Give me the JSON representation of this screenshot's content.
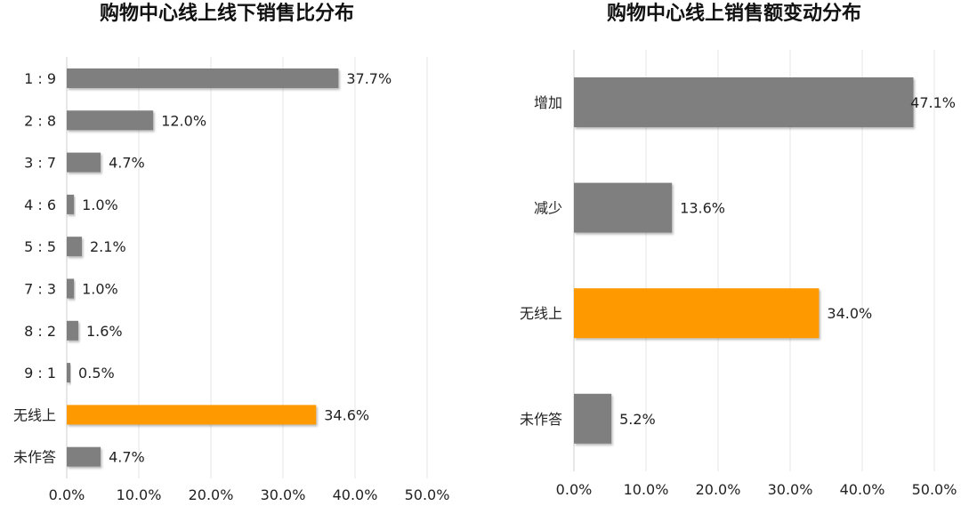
{
  "chart_data": [
    {
      "type": "bar",
      "orientation": "horizontal",
      "title": "购物中心线上线下销售比分布",
      "categories": [
        "1 : 9",
        "2 : 8",
        "3 : 7",
        "4 : 6",
        "5 : 5",
        "7 : 3",
        "8 : 2",
        "9 : 1",
        "无线上",
        "未作答"
      ],
      "values": [
        37.7,
        12.0,
        4.7,
        1.0,
        2.1,
        1.0,
        1.6,
        0.5,
        34.6,
        4.7
      ],
      "data_labels": [
        "37.7%",
        "12.0%",
        "4.7%",
        "1.0%",
        "2.1%",
        "1.0%",
        "1.6%",
        "0.5%",
        "34.6%",
        "4.7%"
      ],
      "highlight_index": 8,
      "xlim": [
        0,
        50
      ],
      "xticks": [
        "0.0%",
        "10.0%",
        "20.0%",
        "30.0%",
        "40.0%",
        "50.0%"
      ],
      "grid": true,
      "colors": {
        "default": "#7f7f7f",
        "highlight": "#ff9900"
      }
    },
    {
      "type": "bar",
      "orientation": "horizontal",
      "title": "购物中心线上销售额变动分布",
      "categories": [
        "增加",
        "减少",
        "无线上",
        "未作答"
      ],
      "values": [
        47.1,
        13.6,
        34.0,
        5.2
      ],
      "data_labels": [
        "47.1%",
        "13.6%",
        "34.0%",
        "5.2%"
      ],
      "highlight_index": 2,
      "xlim": [
        0,
        50
      ],
      "xticks": [
        "0.0%",
        "10.0%",
        "20.0%",
        "30.0%",
        "40.0%",
        "50.0%"
      ],
      "grid": true,
      "colors": {
        "default": "#7f7f7f",
        "highlight": "#ff9900"
      }
    }
  ]
}
